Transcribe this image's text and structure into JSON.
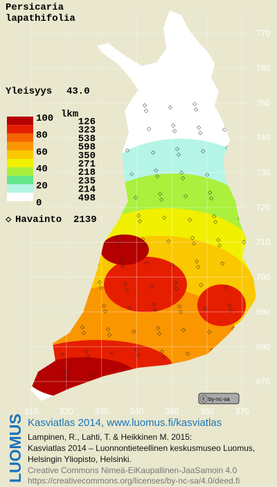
{
  "title_lines": [
    "Persicaria",
    "lapathifolia"
  ],
  "frequency": {
    "label": "Yleisyys",
    "value": "43.0"
  },
  "legend": {
    "scale_labels": [
      "100",
      "80",
      "60",
      "40",
      "20",
      "0"
    ],
    "count_header": "lkm",
    "counts": [
      "126",
      "323",
      "538",
      "598",
      "350",
      "271",
      "218",
      "235",
      "214",
      "498"
    ],
    "colors": [
      "#b40000",
      "#e61e00",
      "#f56400",
      "#fa9600",
      "#fac800",
      "#f0f000",
      "#aaf03c",
      "#64e68c",
      "#b4f5e6",
      "#ffffff"
    ]
  },
  "observations": {
    "label": "Havainto",
    "value": "2139"
  },
  "grid": {
    "northing": [
      770,
      760,
      750,
      740,
      730,
      720,
      710,
      700,
      690,
      680,
      670
    ],
    "easting": [
      310,
      320,
      330,
      340,
      350,
      360,
      370
    ]
  },
  "license_badge": "by-nc-sa",
  "credits": {
    "logo": "LUOMUS",
    "heading": "Kasviatlas 2014, www.luomus.fi/kasviatlas",
    "lines": [
      "Lampinen, R., Lahti, T. & Heikkinen M. 2015:",
      "Kasviatlas 2014 – Luonnontieteellinen keskusmuseo Luomus,",
      "Helsingin Yliopisto, Helsinki."
    ],
    "license_lines": [
      "Creative Commons Nimeä-EiKaupallinen-JaaSamoin 4.0",
      "https://creativecommons.org/licenses/by-nc-sa/4.0/deed.fi"
    ]
  }
}
